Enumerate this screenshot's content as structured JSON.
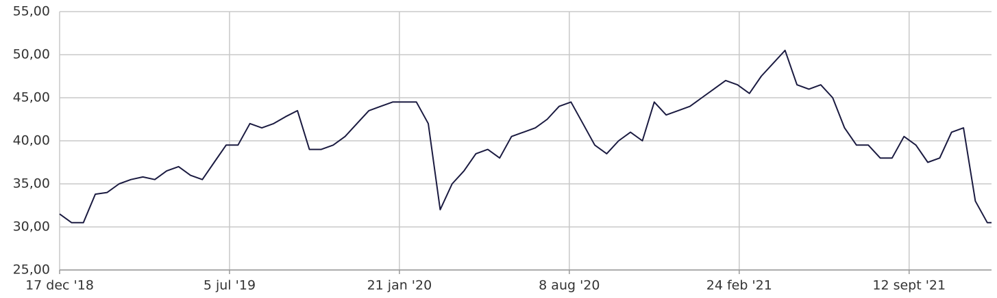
{
  "chart_data": {
    "type": "line",
    "x": [
      "2018-12-17",
      "2018-12-31",
      "2019-01-14",
      "2019-01-28",
      "2019-02-11",
      "2019-02-25",
      "2019-03-11",
      "2019-03-25",
      "2019-04-08",
      "2019-04-22",
      "2019-05-06",
      "2019-05-20",
      "2019-06-03",
      "2019-06-17",
      "2019-07-01",
      "2019-07-15",
      "2019-07-29",
      "2019-08-12",
      "2019-08-26",
      "2019-09-09",
      "2019-09-23",
      "2019-10-07",
      "2019-10-21",
      "2019-11-04",
      "2019-11-18",
      "2019-12-02",
      "2019-12-16",
      "2019-12-30",
      "2020-01-13",
      "2020-01-27",
      "2020-02-10",
      "2020-02-24",
      "2020-03-09",
      "2020-03-23",
      "2020-04-06",
      "2020-04-20",
      "2020-05-04",
      "2020-05-18",
      "2020-06-01",
      "2020-06-15",
      "2020-06-29",
      "2020-07-13",
      "2020-07-27",
      "2020-08-10",
      "2020-08-24",
      "2020-09-07",
      "2020-09-21",
      "2020-10-05",
      "2020-10-19",
      "2020-11-02",
      "2020-11-16",
      "2020-11-30",
      "2020-12-14",
      "2020-12-28",
      "2021-01-11",
      "2021-01-25",
      "2021-02-08",
      "2021-02-22",
      "2021-03-08",
      "2021-03-22",
      "2021-04-05",
      "2021-04-19",
      "2021-05-03",
      "2021-05-17",
      "2021-05-31",
      "2021-06-14",
      "2021-06-28",
      "2021-07-12",
      "2021-07-26",
      "2021-08-09",
      "2021-08-23",
      "2021-09-06",
      "2021-09-20",
      "2021-10-04",
      "2021-10-18",
      "2021-11-01",
      "2021-11-15",
      "2021-11-29",
      "2021-12-13",
      "2021-12-18"
    ],
    "series": [
      {
        "color": "#1a1a40",
        "values": [
          31.5,
          30.5,
          30.5,
          33.8,
          34.0,
          35.0,
          35.5,
          35.8,
          35.5,
          36.5,
          37.0,
          36.0,
          35.5,
          37.5,
          39.5,
          39.5,
          42.0,
          41.5,
          42.0,
          42.8,
          43.5,
          39.0,
          39.0,
          39.5,
          40.5,
          42.0,
          43.5,
          44.0,
          44.5,
          44.5,
          44.5,
          42.0,
          32.0,
          35.0,
          36.5,
          38.5,
          39.0,
          38.0,
          40.5,
          41.0,
          41.5,
          42.5,
          44.0,
          44.5,
          42.0,
          39.5,
          38.5,
          40.0,
          41.0,
          40.0,
          44.5,
          43.0,
          43.5,
          44.0,
          45.0,
          46.0,
          47.0,
          46.5,
          45.5,
          47.5,
          49.0,
          50.5,
          46.5,
          46.0,
          46.5,
          45.0,
          41.5,
          39.5,
          39.5,
          38.0,
          38.0,
          40.5,
          39.5,
          37.5,
          38.0,
          41.0,
          41.5,
          33.0,
          30.5,
          30.5
        ]
      }
    ],
    "xlim": [
      "2018-12-17",
      "2021-12-18"
    ],
    "xticks": [
      {
        "value": "2018-12-17",
        "label": "17 dec '18"
      },
      {
        "value": "2019-07-05",
        "label": "5 jul '19"
      },
      {
        "value": "2020-01-21",
        "label": "21 jan '20"
      },
      {
        "value": "2020-08-08",
        "label": "8 aug '20"
      },
      {
        "value": "2021-02-24",
        "label": "24 feb '21"
      },
      {
        "value": "2021-09-12",
        "label": "12 sept '21"
      }
    ],
    "ylim": [
      25,
      55
    ],
    "yticks": [
      {
        "value": 25,
        "label": "25,00"
      },
      {
        "value": 30,
        "label": "30,00"
      },
      {
        "value": 35,
        "label": "35,00"
      },
      {
        "value": 40,
        "label": "40,00"
      },
      {
        "value": 45,
        "label": "45,00"
      },
      {
        "value": 50,
        "label": "50,00"
      },
      {
        "value": 55,
        "label": "55,00"
      }
    ],
    "grid": true
  }
}
